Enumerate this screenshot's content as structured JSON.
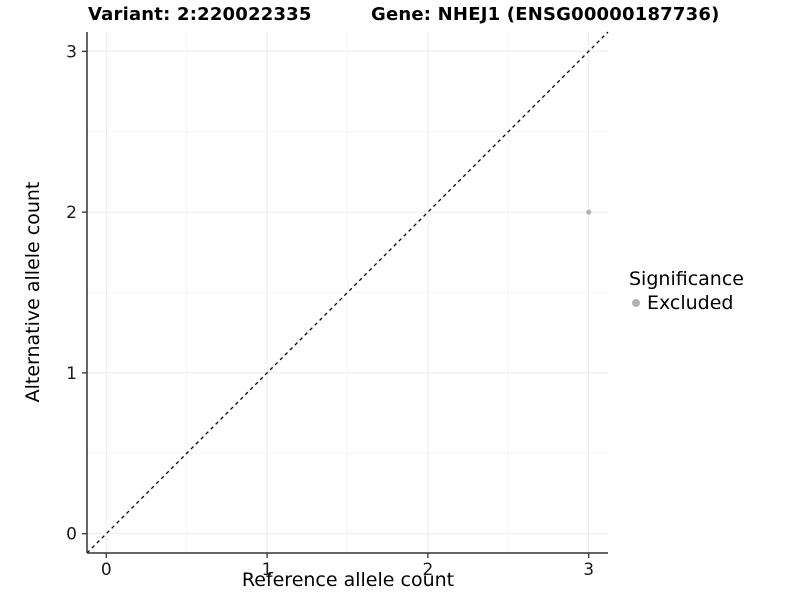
{
  "chart_data": {
    "type": "scatter",
    "titles": {
      "left": "Variant: 2:220022335",
      "right": "Gene: NHEJ1 (ENSG00000187736)"
    },
    "xlabel": "Reference allele count",
    "ylabel": "Alternative allele count",
    "xlim": [
      -0.12,
      3.12
    ],
    "ylim": [
      -0.12,
      3.12
    ],
    "xticks": [
      0,
      1,
      2,
      3
    ],
    "yticks": [
      0,
      1,
      2,
      3
    ],
    "minor_gridlines": [
      0.5,
      1.5,
      2.5
    ],
    "grid": "major and minor gridlines on, white panel background",
    "points": [
      {
        "x": 3,
        "y": 2,
        "series": "Excluded"
      }
    ],
    "reference_line": {
      "slope": 1,
      "intercept": 0,
      "style": "dashed"
    },
    "legend": {
      "title": "Significance",
      "position": "right",
      "entries": [
        {
          "label": "Excluded",
          "color": "#b2b2b2"
        }
      ]
    },
    "colors": {
      "point": "#b2b2b2",
      "grid_major": "#ebebeb",
      "grid_minor": "#f5f5f5",
      "axis_line": "#333333",
      "tick_label": "#1a1a1a",
      "reference_line": "#000000"
    }
  }
}
